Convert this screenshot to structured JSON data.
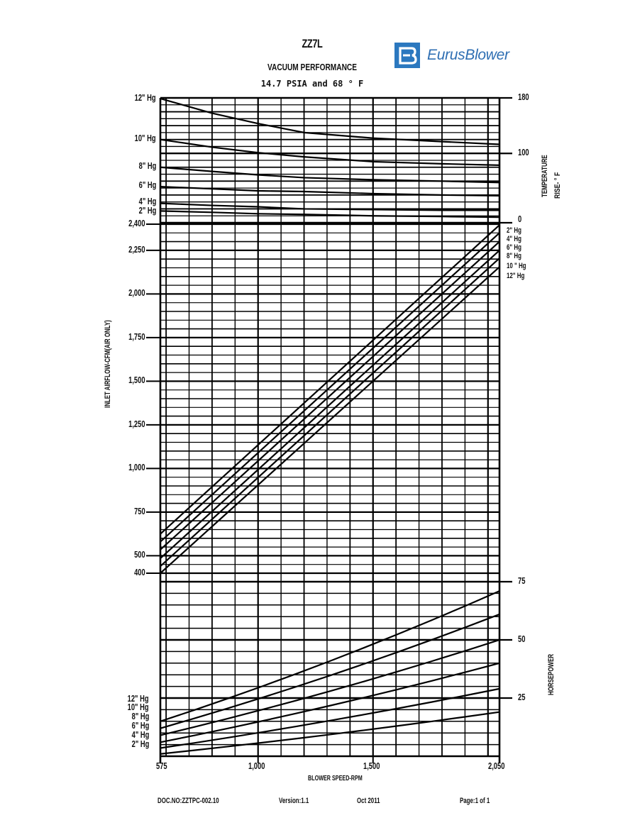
{
  "header": {
    "model": "ZZ7L",
    "subtitle": "VACUUM PERFORMANCE",
    "conditions": "14.7 PSIA and 68 ° F"
  },
  "brand": {
    "name": "EurusBlower",
    "icon": "eb-logo-icon",
    "color": "#2b78bf"
  },
  "footer": {
    "doc_no": "DOC.NO:ZZTPC-002.10",
    "version": "Version:1.1",
    "date": "Oct 2011",
    "page": "Page:1 of 1"
  },
  "axes": {
    "x_label": "BLOWER SPEED-RPM",
    "x_ticks": [
      "575",
      "1,000",
      "1,500",
      "2,050"
    ],
    "airflow_label": "INLET AIRFLOW-CFM(AIR ONLY)",
    "airflow_ticks": [
      "2,400",
      "2,250",
      "2,000",
      "1,750",
      "1,500",
      "1,250",
      "1,000",
      "750",
      "500",
      "400"
    ],
    "temp_label_1": "TEMPERATURE",
    "temp_label_2": "RISE- ° F",
    "temp_ticks": [
      "180",
      "100",
      "0"
    ],
    "hp_label": "HORSEPOWER",
    "hp_ticks": [
      "75",
      "50",
      "25"
    ]
  },
  "legends": {
    "temp_left": [
      "12\" Hg",
      "10\" Hg",
      "8\" Hg",
      "6\" Hg",
      "4\" Hg",
      "2\" Hg"
    ],
    "airflow_right": [
      "2\" Hg",
      "4\" Hg",
      "6\" Hg",
      "8\" Hg",
      "10 \" Hg",
      "12\" Hg"
    ],
    "hp_left": [
      "12\" Hg",
      "10\" Hg",
      "8\" Hg",
      "6\" Hg",
      "4\" Hg",
      "2\" Hg"
    ]
  },
  "chart_data": [
    {
      "type": "line",
      "title": "ZZ7L Vacuum Performance - Temperature Rise",
      "xlabel": "BLOWER SPEED-RPM",
      "ylabel": "TEMPERATURE RISE- ° F",
      "xlim": [
        575,
        2050
      ],
      "ylim": [
        0,
        180
      ],
      "grid": true,
      "x": [
        575,
        800,
        1000,
        1200,
        1500,
        1800,
        2050
      ],
      "series": [
        {
          "name": "12\" Hg",
          "values": [
            179,
            158,
            143,
            130,
            122,
            117,
            113
          ]
        },
        {
          "name": "10\" Hg",
          "values": [
            120,
            109,
            101,
            95,
            88,
            85,
            83
          ]
        },
        {
          "name": "8\" Hg",
          "values": [
            80,
            74,
            69,
            65,
            62,
            60,
            58
          ]
        },
        {
          "name": "6\" Hg",
          "values": [
            52,
            49,
            46,
            45,
            42,
            40,
            39
          ]
        },
        {
          "name": "4\" Hg",
          "values": [
            28,
            25,
            23,
            20,
            19,
            18,
            18
          ]
        },
        {
          "name": "2\" Hg",
          "values": [
            17,
            15,
            13,
            12,
            10,
            9,
            8
          ]
        }
      ]
    },
    {
      "type": "line",
      "title": "ZZ7L Vacuum Performance - Inlet Airflow",
      "xlabel": "BLOWER SPEED-RPM",
      "ylabel": "INLET AIRFLOW-CFM(AIR ONLY)",
      "xlim": [
        575,
        2050
      ],
      "ylim": [
        400,
        2400
      ],
      "grid": true,
      "x": [
        575,
        2050
      ],
      "series": [
        {
          "name": "2\" Hg",
          "values": [
            625,
            2395
          ]
        },
        {
          "name": "4\" Hg",
          "values": [
            580,
            2350
          ]
        },
        {
          "name": "6\" Hg",
          "values": [
            535,
            2300
          ]
        },
        {
          "name": "8\" Hg",
          "values": [
            485,
            2250
          ]
        },
        {
          "name": "10\" Hg",
          "values": [
            440,
            2205
          ]
        },
        {
          "name": "12\" Hg",
          "values": [
            400,
            2155
          ]
        }
      ]
    },
    {
      "type": "line",
      "title": "ZZ7L Vacuum Performance - Horsepower",
      "xlabel": "BLOWER SPEED-RPM",
      "ylabel": "HORSEPOWER",
      "xlim": [
        575,
        2050
      ],
      "ylim": [
        0,
        80
      ],
      "grid": true,
      "x": [
        575,
        2050
      ],
      "series": [
        {
          "name": "12\" Hg",
          "values": [
            15,
            71
          ]
        },
        {
          "name": "10\" Hg",
          "values": [
            12,
            61
          ]
        },
        {
          "name": "8\" Hg",
          "values": [
            9,
            50
          ]
        },
        {
          "name": "6\" Hg",
          "values": [
            6,
            40
          ]
        },
        {
          "name": "4\" Hg",
          "values": [
            3.5,
            29
          ]
        },
        {
          "name": "2\" Hg",
          "values": [
            1,
            19
          ]
        }
      ]
    }
  ]
}
